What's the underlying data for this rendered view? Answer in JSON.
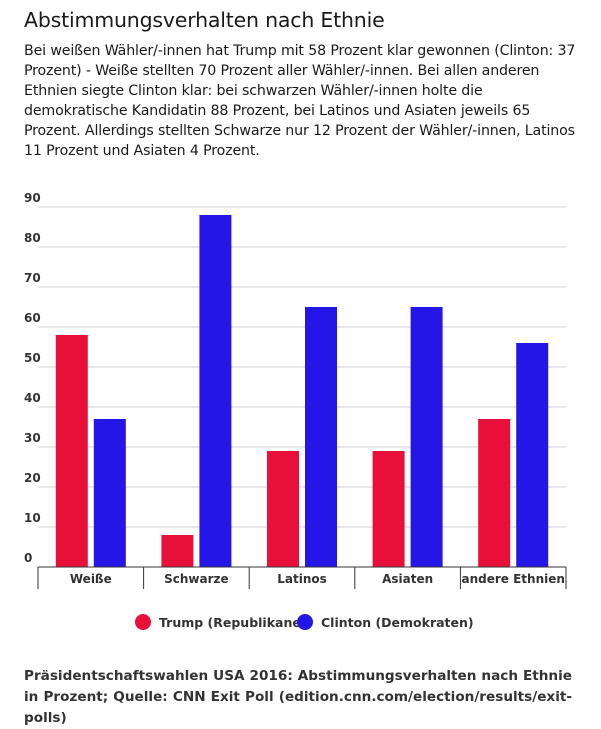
{
  "title": "Abstimmungsverhalten nach Ethnie",
  "subtitle": "Bei weißen Wähler/-innen hat Trump mit 58 Prozent klar gewonnen (Clinton: 37 Prozent) - Weiße stellten 70 Prozent aller Wähler/-innen. Bei allen anderen Ethnien siegte Clinton klar: bei schwarzen Wähler/-innen holte die demokratische Kandidatin 88 Prozent, bei Latinos und Asiaten jeweils 65 Prozent. Allerdings stellten Schwarze nur 12 Prozent der Wähler/-innen, Latinos 11 Prozent und Asiaten 4 Prozent.",
  "footer": "Präsidentschaftswahlen USA 2016: Abstimmungsverhalten nach Ethnie in Prozent; Quelle: CNN Exit Poll (edition.cnn.com/election/results/exit-polls)",
  "chart_data": {
    "type": "bar",
    "categories": [
      "Weiße",
      "Schwarze",
      "Latinos",
      "Asiaten",
      "andere Ethnien"
    ],
    "series": [
      {
        "name": "Trump (Republikaner)",
        "color": "#e8103a",
        "values": [
          58,
          8,
          29,
          29,
          37
        ]
      },
      {
        "name": "Clinton (Demokraten)",
        "color": "#2416e6",
        "values": [
          37,
          88,
          65,
          65,
          56
        ]
      }
    ],
    "ylim": [
      0,
      90
    ],
    "yticks": [
      0,
      10,
      20,
      30,
      40,
      50,
      60,
      70,
      80,
      90
    ],
    "grid": true,
    "legend": "bottom"
  }
}
